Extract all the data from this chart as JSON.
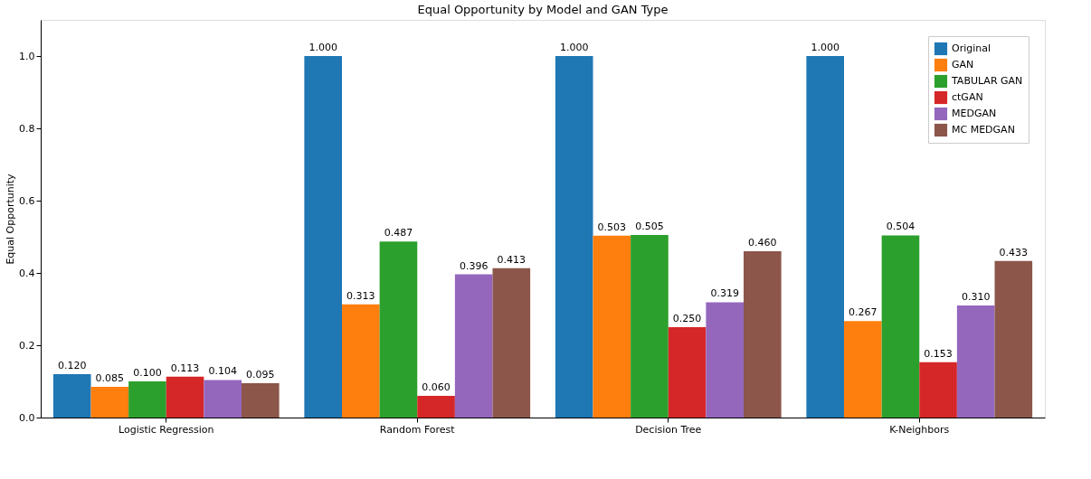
{
  "chart_data": {
    "type": "bar",
    "title": "Equal Opportunity by Model and GAN Type",
    "ylabel": "Equal Opportunity",
    "categories": [
      "Logistic Regression",
      "Random Forest",
      "Decision Tree",
      "K-Neighbors"
    ],
    "series": [
      {
        "name": "Original",
        "color": "#1f77b4",
        "values": [
          0.12,
          1.0,
          1.0,
          1.0
        ],
        "value_labels": [
          "0.120",
          "1.000",
          "1.000",
          "1.000"
        ]
      },
      {
        "name": "GAN",
        "color": "#ff7f0e",
        "values": [
          0.085,
          0.313,
          0.503,
          0.267
        ],
        "value_labels": [
          "0.085",
          "0.313",
          "0.503",
          "0.267"
        ]
      },
      {
        "name": "TABULAR GAN",
        "color": "#2ca02c",
        "values": [
          0.1,
          0.487,
          0.505,
          0.504
        ],
        "value_labels": [
          "0.100",
          "0.487",
          "0.505",
          "0.504"
        ]
      },
      {
        "name": "ctGAN",
        "color": "#d62728",
        "values": [
          0.113,
          0.06,
          0.25,
          0.153
        ],
        "value_labels": [
          "0.113",
          "0.060",
          "0.250",
          "0.153"
        ]
      },
      {
        "name": "MEDGAN",
        "color": "#9467bd",
        "values": [
          0.104,
          0.396,
          0.319,
          0.31
        ],
        "value_labels": [
          "0.104",
          "0.396",
          "0.319",
          "0.310"
        ]
      },
      {
        "name": "MC MEDGAN",
        "color": "#8c564b",
        "values": [
          0.095,
          0.413,
          0.46,
          0.433
        ],
        "value_labels": [
          "0.095",
          "0.413",
          "0.460",
          "0.433"
        ]
      }
    ],
    "ylim": [
      0,
      1.1
    ],
    "yticks": [
      {
        "value": 0,
        "label": "0.0"
      },
      {
        "value": 0.2,
        "label": "0.2"
      },
      {
        "value": 0.4,
        "label": "0.4"
      },
      {
        "value": 0.6,
        "label": "0.6"
      },
      {
        "value": 0.8,
        "label": "0.8"
      },
      {
        "value": 1.0,
        "label": "1.0"
      }
    ],
    "grid": false,
    "legend": "top right"
  }
}
